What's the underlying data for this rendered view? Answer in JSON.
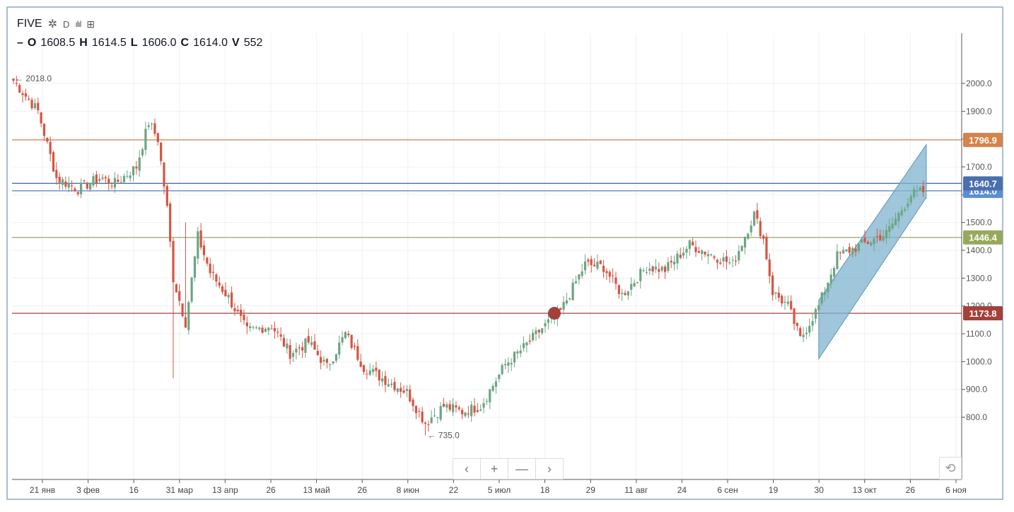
{
  "header": {
    "symbol": "FIVE",
    "interval": "D",
    "ohlc": {
      "o_label": "O",
      "o": "1608.5",
      "h_label": "H",
      "h": "1614.5",
      "l_label": "L",
      "l": "1606.0",
      "c_label": "C",
      "c": "1614.0",
      "v_label": "V",
      "v": "552"
    }
  },
  "toolbar": {
    "prev_label": "‹",
    "zoom_in_label": "+",
    "zoom_out_label": "—",
    "next_label": "›",
    "reset_label": "⟲"
  },
  "chart_data": {
    "type": "candlestick",
    "title": "",
    "xlabel": "",
    "ylabel": "",
    "ylim": [
      690,
      2090
    ],
    "y_ticks": [
      "2000.0",
      "1900.0",
      "1800.0",
      "1700.0",
      "1600.0",
      "1500.0",
      "1400.0",
      "1300.0",
      "1200.0",
      "1100.0",
      "1000.0",
      "900.0",
      "800.0"
    ],
    "x_ticks": [
      "21 янв",
      "3 фев",
      "16",
      "31 мар",
      "13 апр",
      "26",
      "13 май",
      "26",
      "8 июн",
      "22",
      "5 июл",
      "18",
      "29",
      "11 авг",
      "24",
      "6 сен",
      "19",
      "30",
      "13 окт",
      "26",
      "6 ноя"
    ],
    "grid": true,
    "up_color": "#6ba583",
    "down_color": "#d75442",
    "waypoints": [
      [
        0,
        2010
      ],
      [
        8,
        1900
      ],
      [
        14,
        1660
      ],
      [
        21,
        1620
      ],
      [
        28,
        1660
      ],
      [
        33,
        1640
      ],
      [
        40,
        1700
      ],
      [
        44,
        1860
      ],
      [
        47,
        1800
      ],
      [
        50,
        1550
      ],
      [
        52,
        1300
      ],
      [
        56,
        1140
      ],
      [
        60,
        1450
      ],
      [
        64,
        1320
      ],
      [
        70,
        1230
      ],
      [
        76,
        1110
      ],
      [
        84,
        1130
      ],
      [
        90,
        1030
      ],
      [
        96,
        1070
      ],
      [
        102,
        980
      ],
      [
        108,
        1100
      ],
      [
        114,
        980
      ],
      [
        120,
        940
      ],
      [
        128,
        890
      ],
      [
        134,
        780
      ],
      [
        140,
        840
      ],
      [
        146,
        820
      ],
      [
        152,
        840
      ],
      [
        160,
        990
      ],
      [
        166,
        1050
      ],
      [
        172,
        1120
      ],
      [
        178,
        1180
      ],
      [
        186,
        1350
      ],
      [
        192,
        1340
      ],
      [
        198,
        1240
      ],
      [
        206,
        1340
      ],
      [
        212,
        1330
      ],
      [
        220,
        1420
      ],
      [
        228,
        1380
      ],
      [
        234,
        1350
      ],
      [
        241,
        1530
      ],
      [
        244,
        1440
      ],
      [
        247,
        1250
      ],
      [
        252,
        1200
      ],
      [
        256,
        1080
      ],
      [
        262,
        1200
      ],
      [
        268,
        1380
      ],
      [
        276,
        1420
      ],
      [
        284,
        1460
      ],
      [
        292,
        1600
      ],
      [
        297,
        1614
      ]
    ],
    "markers": [
      {
        "label": "← 2018.0",
        "value": 2018.0
      },
      {
        "label": "← 735.0",
        "value": 735.0
      }
    ],
    "horizontal_lines": [
      {
        "value": 1796.9,
        "label": "1796.9",
        "color": "#d5834a"
      },
      {
        "value": 1640.7,
        "label": "1640.7",
        "color": "#4a6fad"
      },
      {
        "value": 1614.0,
        "label": "1614.0",
        "color": "#5b8ed0"
      },
      {
        "value": 1446.4,
        "label": "1446.4",
        "color": "#97a85c"
      },
      {
        "value": 1173.8,
        "label": "1173.8",
        "color": "#a3403a"
      }
    ],
    "channel": {
      "start_index": 262,
      "end_index": 297,
      "bottom_start": 1010,
      "bottom_end": 1590,
      "top_start": 1220,
      "top_end": 1780,
      "color": "#7fb3cf"
    },
    "dot": {
      "index": 176,
      "value": 1173.8,
      "color": "#a3403a"
    }
  }
}
